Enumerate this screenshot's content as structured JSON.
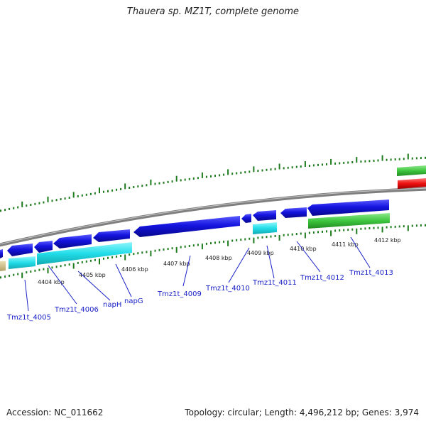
{
  "title": "Thauera sp. MZ1T, complete genome",
  "footer": {
    "accession": "Accession: NC_011662",
    "topology": "Topology: circular; Length: 4,496,212 bp; Genes: 3,974"
  },
  "colors": {
    "backbone": "#7f7f7f",
    "ticks": "#1d7a1d",
    "gene_forward": "#1414e0",
    "gene_reverse": "#1414e0",
    "cds": "#22dde8",
    "rna_green": "#3ec63e",
    "rna_red": "#ee1111",
    "label": "#1a22c8"
  },
  "kbp_labels": [
    "4404 kbp",
    "4405 kbp",
    "4406 kbp",
    "4407 kbp",
    "4408 kbp",
    "4409 kbp",
    "4410 kbp",
    "4411 kbp",
    "4412 kbp"
  ],
  "gene_labels": [
    "Tmz1t_4005",
    "Tmz1t_4006",
    "napH",
    "napG",
    "Tmz1t_4009",
    "Tmz1t_4010",
    "Tmz1t_4011",
    "Tmz1t_4012",
    "Tmz1t_4013"
  ]
}
